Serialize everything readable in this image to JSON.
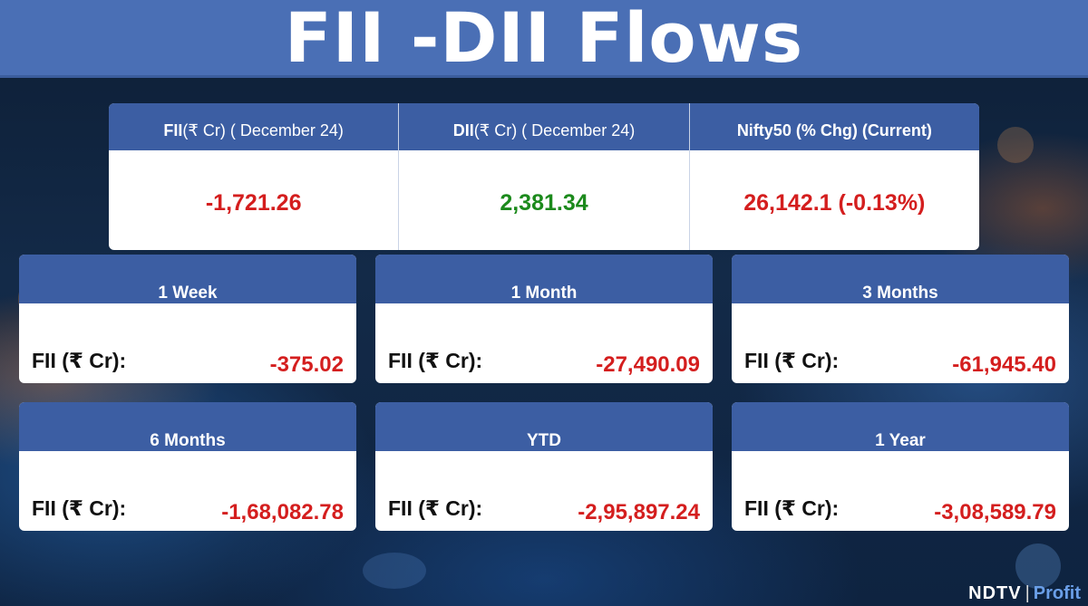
{
  "header": {
    "title": "FII -DII Flows"
  },
  "summary": [
    {
      "label_bold": "FII",
      "label_rest": "(₹ Cr) ( December 24)",
      "value": "-1,721.26",
      "tone": "red"
    },
    {
      "label_bold": "DII",
      "label_rest": "(₹ Cr) ( December 24)",
      "value": "2,381.34",
      "tone": "green"
    },
    {
      "label_bold": "Nifty50 (% Chg) (Current)",
      "label_rest": "",
      "value": "26,142.1 (-0.13%)",
      "tone": "red"
    }
  ],
  "periods": [
    {
      "title": "1 Week",
      "label": "FII (₹ Cr):",
      "value": "-375.02"
    },
    {
      "title": "1 Month",
      "label": "FII (₹ Cr):",
      "value": "-27,490.09"
    },
    {
      "title": "3 Months",
      "label": "FII (₹ Cr):",
      "value": "-61,945.40"
    },
    {
      "title": "6 Months",
      "label": "FII (₹ Cr):",
      "value": "-1,68,082.78"
    },
    {
      "title": "YTD",
      "label": "FII (₹ Cr):",
      "value": "-2,95,897.24"
    },
    {
      "title": "1 Year",
      "label": "FII (₹ Cr):",
      "value": "-3,08,589.79"
    }
  ],
  "brand": {
    "part1": "NDTV",
    "separator": "|",
    "part2": "Profit"
  },
  "colors": {
    "header_bg": "#4a6fb5",
    "table_header_bg": "#3c5ea3",
    "negative": "#d41e1e",
    "positive": "#1c8a1c"
  }
}
